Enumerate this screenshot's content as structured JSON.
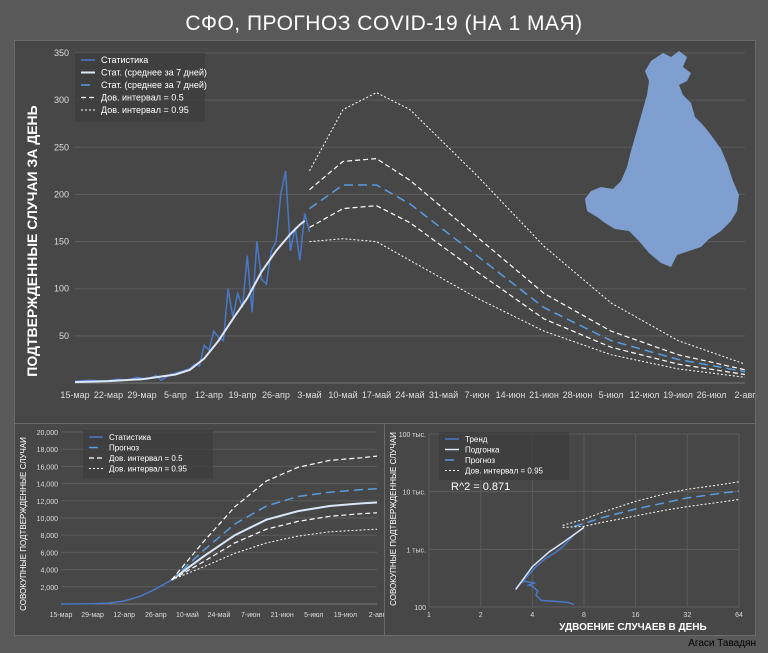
{
  "title": "СФО, ПРОГНОЗ COVID-19 (НА 1 МАЯ)",
  "credit": "Агаси Тавадян",
  "colors": {
    "background": "#595959",
    "panel": "#474747",
    "stat": "#4a78c8",
    "avg": "#dbe6f7",
    "forecast": "#5a9be0",
    "ci": "#ffffff",
    "map": "#7e9fd0",
    "grid": "#5c5c5c"
  },
  "chart_data": [
    {
      "id": "daily",
      "type": "line",
      "ylabel": "ПОДТВЕРЖДЕННЫЕ СЛУЧАИ ЗА ДЕНЬ",
      "ylim": [
        0,
        350
      ],
      "yticks": [
        50,
        100,
        150,
        200,
        250,
        300,
        350
      ],
      "x_tick_labels": [
        "15-мар",
        "22-мар",
        "29-мар",
        "5-апр",
        "12-апр",
        "19-апр",
        "26-апр",
        "3-май",
        "10-май",
        "17-май",
        "24-май",
        "31-май",
        "7-июн",
        "14-июн",
        "21-июн",
        "28-июн",
        "5-июл",
        "12-июл",
        "19-июл",
        "26-июл",
        "2-авг"
      ],
      "x_tick_days": [
        0,
        7,
        14,
        21,
        28,
        35,
        42,
        49,
        56,
        63,
        70,
        77,
        84,
        91,
        98,
        105,
        112,
        119,
        126,
        133,
        140
      ],
      "legend": [
        "Статистика",
        "Стат. (среднее за 7 дней)",
        "Стат. (среднее за 7 дней)",
        "Дов. интервал = 0.5",
        "Дов. интервал = 0.95"
      ],
      "series": [
        {
          "name": "Статистика",
          "x": [
            0,
            3,
            6,
            9,
            11,
            13,
            15,
            17,
            18,
            20,
            22,
            24,
            25,
            26,
            27,
            28,
            29,
            30,
            31,
            32,
            33,
            34,
            35,
            36,
            37,
            38,
            39,
            40,
            41,
            42,
            43,
            44,
            45,
            46,
            47,
            48,
            49
          ],
          "values": [
            2,
            3,
            2,
            4,
            3,
            6,
            4,
            8,
            3,
            9,
            12,
            15,
            20,
            18,
            40,
            35,
            55,
            48,
            45,
            100,
            70,
            95,
            80,
            135,
            75,
            150,
            110,
            105,
            140,
            150,
            200,
            225,
            140,
            165,
            130,
            180,
            160
          ]
        },
        {
          "name": "Стат. (среднее за 7 дней)",
          "x": [
            0,
            7,
            14,
            21,
            24,
            27,
            30,
            33,
            36,
            39,
            42,
            45,
            47,
            48
          ],
          "values": [
            1,
            2,
            4,
            9,
            14,
            26,
            45,
            68,
            90,
            118,
            140,
            158,
            168,
            172
          ]
        },
        {
          "name": "Прогноз",
          "x": [
            49,
            56,
            63,
            70,
            84,
            98,
            112,
            126,
            140
          ],
          "values": [
            185,
            210,
            210,
            190,
            135,
            80,
            45,
            25,
            12
          ]
        },
        {
          "name": "Дов. интервал = 0.5 (верх)",
          "x": [
            49,
            56,
            63,
            70,
            84,
            98,
            112,
            126,
            140
          ],
          "values": [
            205,
            235,
            238,
            215,
            155,
            95,
            55,
            30,
            14
          ]
        },
        {
          "name": "Дов. интервал = 0.5 (низ)",
          "x": [
            49,
            56,
            63,
            70,
            84,
            98,
            112,
            126,
            140
          ],
          "values": [
            165,
            185,
            188,
            170,
            118,
            68,
            38,
            20,
            9
          ]
        },
        {
          "name": "Дов. интервал = 0.95 (верх)",
          "x": [
            49,
            56,
            63,
            70,
            84,
            98,
            112,
            126,
            140
          ],
          "values": [
            225,
            290,
            308,
            290,
            220,
            145,
            85,
            45,
            20
          ]
        },
        {
          "name": "Дов. интервал = 0.95 (низ)",
          "x": [
            49,
            56,
            63,
            70,
            84,
            98,
            112,
            126,
            140
          ],
          "values": [
            150,
            153,
            150,
            130,
            90,
            55,
            30,
            15,
            6
          ]
        }
      ]
    },
    {
      "id": "cumulative",
      "type": "line",
      "ylabel": "СОВОКУПНЫЕ ПОДТВЕРЖДЕННЫЕ СЛУЧАИ",
      "ylim": [
        0,
        20000
      ],
      "y_tick_labels": [
        "2,000",
        "4,000",
        "6,000",
        "8,000",
        "10,000",
        "12,000",
        "14,000",
        "16,000",
        "18,000",
        "20,000"
      ],
      "x_tick_labels": [
        "15-мар",
        "29-мар",
        "12-апр",
        "26-апр",
        "10-май",
        "24-май",
        "7-июн",
        "21-июн",
        "5-июл",
        "19-июл",
        "2-авг"
      ],
      "legend": [
        "Статистика",
        "Прогноз",
        "Дов. интервал = 0.5",
        "Дов. интервал = 0.95"
      ],
      "series": [
        {
          "name": "Статистика",
          "x": [
            0,
            14,
            21,
            28,
            35,
            42,
            49
          ],
          "values": [
            0,
            30,
            100,
            350,
            900,
            1750,
            2800
          ]
        },
        {
          "name": "Прогноз",
          "x": [
            49,
            63,
            77,
            91,
            105,
            119,
            133,
            140
          ],
          "values": [
            2800,
            5500,
            8000,
            9800,
            10800,
            11400,
            11700,
            11800
          ]
        },
        {
          "name": "Дов. интервал = 0.5 (верх)",
          "x": [
            49,
            63,
            77,
            91,
            105,
            119,
            133,
            140
          ],
          "values": [
            2800,
            6200,
            9300,
            11400,
            12500,
            13000,
            13300,
            13400
          ]
        },
        {
          "name": "Дов. интервал = 0.5 (низ)",
          "x": [
            49,
            63,
            77,
            91,
            105,
            119,
            133,
            140
          ],
          "values": [
            2800,
            4900,
            7100,
            8700,
            9600,
            10200,
            10500,
            10600
          ]
        },
        {
          "name": "Дов. интервал = 0.95 (верх)",
          "x": [
            49,
            63,
            77,
            91,
            105,
            119,
            133,
            140
          ],
          "values": [
            2800,
            7200,
            11300,
            14300,
            15900,
            16700,
            17000,
            17200
          ]
        },
        {
          "name": "Дов. интервал = 0.95 (низ)",
          "x": [
            49,
            63,
            77,
            91,
            105,
            119,
            133,
            140
          ],
          "values": [
            2800,
            4300,
            5900,
            7100,
            7900,
            8400,
            8600,
            8700
          ]
        }
      ]
    },
    {
      "id": "doubling",
      "type": "line",
      "xscale": "log2",
      "yscale": "log10",
      "ylabel": "СОВОКУПНЫЕ ПОДТВЕРЖДЕННЫЕ СЛУЧАИ",
      "xlabel": "УДВОЕНИЕ СЛУЧАЕВ В ДЕНЬ",
      "xlim": [
        1,
        64
      ],
      "ylim": [
        100,
        100000
      ],
      "x_tick_labels": [
        "1",
        "2",
        "4",
        "8",
        "16",
        "32",
        "64"
      ],
      "y_tick_labels": [
        "100",
        "1 тыс.",
        "10 тыс.",
        "100 тыс."
      ],
      "annotation": "R^2 = 0.871",
      "legend": [
        "Тренд",
        "Подгонка",
        "Прогноз",
        "Дов. интервал = 0.95"
      ],
      "series": [
        {
          "name": "Тренд",
          "x": [
            7,
            6.5,
            5.5,
            4.5,
            4.2,
            4.3,
            4.0,
            3.8,
            4.1,
            3.6,
            3.4,
            3.2,
            3.6,
            4.2,
            4.8,
            5.5,
            6.0,
            6.5,
            7.0
          ],
          "values": [
            110,
            120,
            125,
            130,
            160,
            190,
            230,
            240,
            260,
            280,
            260,
            210,
            300,
            500,
            700,
            900,
            1100,
            1400,
            1800
          ]
        },
        {
          "name": "Подгонка",
          "x": [
            3.2,
            4,
            5,
            6,
            7,
            8
          ],
          "values": [
            200,
            500,
            900,
            1300,
            1800,
            2400
          ]
        },
        {
          "name": "Прогноз",
          "x": [
            7,
            8,
            10,
            16,
            24,
            32,
            48,
            64
          ],
          "values": [
            2500,
            2800,
            3500,
            5000,
            6500,
            7800,
            9200,
            10300
          ]
        },
        {
          "name": "Дов. интервал = 0.95 (верх)",
          "x": [
            6,
            8,
            10,
            16,
            24,
            32,
            48,
            64
          ],
          "values": [
            2600,
            3300,
            4300,
            6800,
            9300,
            11000,
            13000,
            14800
          ]
        },
        {
          "name": "Дов. интервал = 0.95 (низ)",
          "x": [
            6,
            8,
            10,
            16,
            24,
            32,
            48,
            64
          ],
          "values": [
            2400,
            2500,
            2900,
            3800,
            4800,
            5500,
            6500,
            7300
          ]
        }
      ]
    }
  ]
}
